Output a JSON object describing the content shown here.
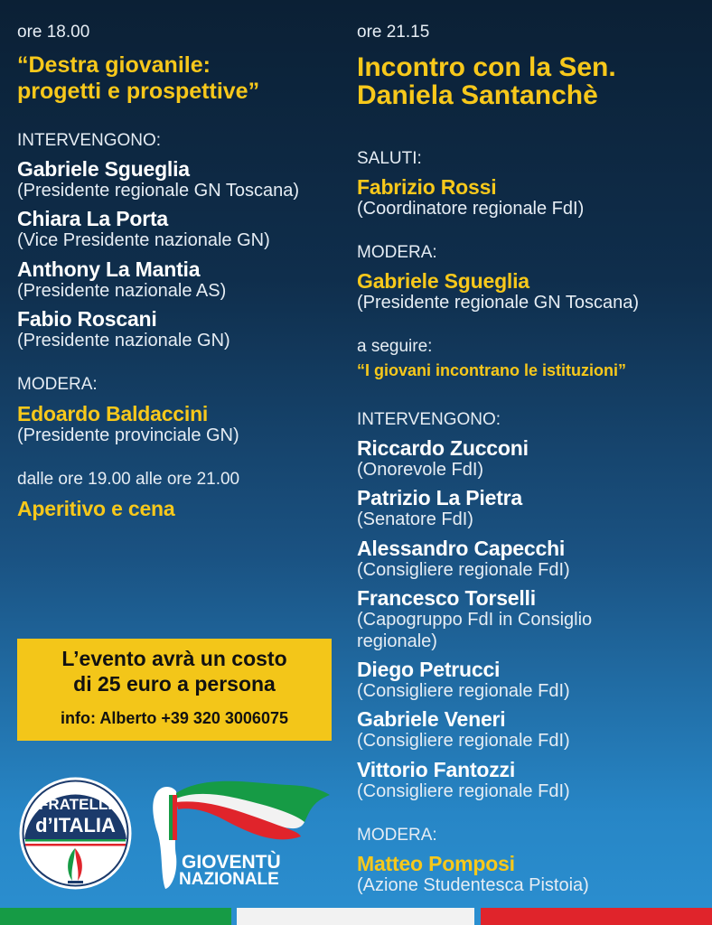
{
  "left": {
    "time": "ore 18.00",
    "title_lines": [
      "“Destra giovanile:",
      "progetti e prospettive”"
    ],
    "speakers_label": "INTERVENGONO:",
    "speakers": [
      {
        "name": "Gabriele Sgueglia",
        "role": "(Presidente regionale GN Toscana)"
      },
      {
        "name": "Chiara La Porta",
        "role": "(Vice Presidente nazionale GN)"
      },
      {
        "name": "Anthony La Mantia",
        "role": "(Presidente nazionale AS)"
      },
      {
        "name": "Fabio Roscani",
        "role": "(Presidente nazionale GN)"
      }
    ],
    "moderator_label": "MODERA:",
    "moderator": {
      "name": "Edoardo Baldaccini",
      "role": "(Presidente provinciale GN)"
    },
    "dinner_time": "dalle ore 19.00 alle ore 21.00",
    "dinner": "Aperitivo e cena"
  },
  "cost_box": {
    "line1": "L’evento avrà un costo",
    "line2": "di 25 euro a persona",
    "info": "info: Alberto +39 320 3006075"
  },
  "right": {
    "time": "ore 21.15",
    "title_lines": [
      "Incontro con la Sen.",
      "Daniela Santanchè"
    ],
    "greetings_label": "SALUTI:",
    "greetings": {
      "name": "Fabrizio Rossi",
      "role": "(Coordinatore regionale FdI)"
    },
    "moderator_label": "MODERA:",
    "moderator": {
      "name": "Gabriele Sgueglia",
      "role": "(Presidente regionale GN Toscana)"
    },
    "following_label": "a seguire:",
    "following_title": "“I giovani incontrano le istituzioni”",
    "speakers_label": "INTERVENGONO:",
    "speakers": [
      {
        "name": "Riccardo Zucconi",
        "role": "(Onorevole FdI)"
      },
      {
        "name": "Patrizio La Pietra",
        "role": "(Senatore FdI)"
      },
      {
        "name": "Alessandro Capecchi",
        "role": "(Consigliere regionale FdI)"
      },
      {
        "name": "Francesco Torselli",
        "role": "(Capogruppo FdI in Consiglio",
        "role2": "regionale)"
      },
      {
        "name": "Diego Petrucci",
        "role": "(Consigliere regionale FdI)"
      },
      {
        "name": "Gabriele Veneri",
        "role": "(Consigliere regionale FdI)"
      },
      {
        "name": "Vittorio Fantozzi",
        "role": "(Consigliere regionale FdI)"
      }
    ],
    "moderator2_label": "MODERA:",
    "moderator2": {
      "name": "Matteo Pomposi",
      "role": "(Azione Studentesca Pistoia)"
    }
  },
  "logos": {
    "fdi": [
      "FRATELLI",
      "d’ITALIA"
    ],
    "gn": [
      "GIOVENTÙ",
      "NAZIONALE"
    ]
  },
  "colors": {
    "accent": "#f7c81b",
    "green": "#169b45",
    "white": "#f2f2f2",
    "red": "#e0242b"
  }
}
